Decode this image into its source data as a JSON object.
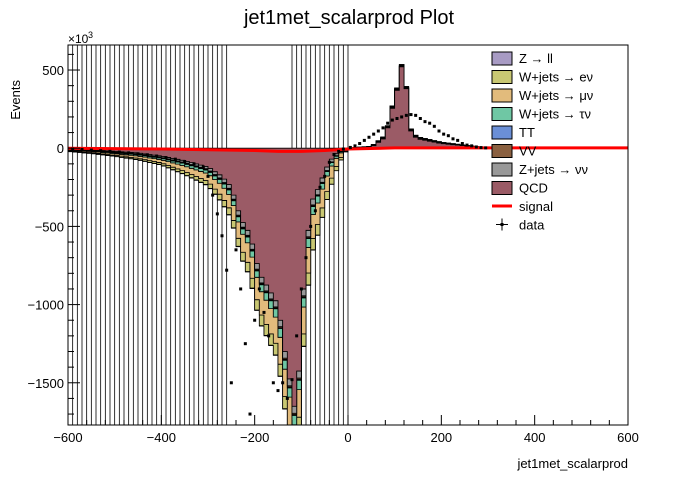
{
  "chart_data": {
    "type": "area",
    "title": "jet1met_scalarprod Plot",
    "xlabel": "jet1met_scalarprod",
    "ylabel": "Events",
    "y_multiplier_label": "×10³",
    "y_multiplier_base": "×10",
    "y_multiplier_exp": "3",
    "xlim": [
      -600,
      600
    ],
    "ylim": [
      -1770,
      660
    ],
    "x_ticks": [
      -600,
      -400,
      -200,
      0,
      200,
      400,
      600
    ],
    "x_tick_labels": [
      "−600",
      "−400",
      "−200",
      "0",
      "200",
      "400",
      "600"
    ],
    "y_ticks": [
      500,
      0,
      -500,
      -1000,
      -1500
    ],
    "y_tick_labels": [
      "500",
      "0",
      "−500",
      "−1000",
      "−1500"
    ],
    "bin_width": 10,
    "stack_x_range": [
      -600,
      300
    ],
    "hatched_x_ranges": [
      [
        -600,
        -260
      ],
      [
        -120,
        0
      ]
    ],
    "legend_position": "top-right",
    "legend": [
      {
        "label": "Z → ll",
        "type": "box",
        "color": "#a89bc4"
      },
      {
        "label": "W+jets → eν",
        "type": "box",
        "color": "#c9c873"
      },
      {
        "label": "W+jets → μν",
        "type": "box",
        "color": "#e2bb7c"
      },
      {
        "label": "W+jets → τν",
        "type": "box",
        "color": "#6fc7a4"
      },
      {
        "label": "TT",
        "type": "box",
        "color": "#6b8fd6"
      },
      {
        "label": "VV",
        "type": "box",
        "color": "#8a6040"
      },
      {
        "label": "Z+jets → νν",
        "type": "box",
        "color": "#999999"
      },
      {
        "label": "QCD",
        "type": "box",
        "color": "#9b5b66"
      },
      {
        "label": "signal",
        "type": "line",
        "color": "#ff0000"
      },
      {
        "label": "data",
        "type": "marker",
        "color": "#000000"
      }
    ],
    "series": [
      {
        "name": "QCD",
        "color": "#9b5b66",
        "x": [
          -600,
          -550,
          -500,
          -450,
          -400,
          -350,
          -300,
          -270,
          -250,
          -230,
          -210,
          -190,
          -170,
          -150,
          -130,
          -120,
          -110,
          -100,
          -90,
          -80,
          -70,
          -60,
          -50,
          -40,
          -30,
          -20,
          -10,
          0,
          50,
          80,
          90,
          100,
          110,
          120,
          130,
          140,
          150,
          200,
          250,
          300
        ],
        "y": [
          -5,
          -10,
          -20,
          -30,
          -50,
          -80,
          -120,
          -180,
          -250,
          -450,
          -550,
          -800,
          -900,
          -1000,
          -1400,
          -1550,
          -1750,
          -1100,
          -700,
          -350,
          -300,
          -230,
          -150,
          -90,
          -50,
          -20,
          -5,
          0,
          5,
          70,
          190,
          320,
          420,
          620,
          140,
          80,
          60,
          30,
          15,
          0
        ]
      },
      {
        "name": "Z+jets → νν",
        "color": "#999999",
        "x": [
          -600,
          -500,
          -400,
          -300,
          -250,
          -200,
          -150,
          -120,
          -100,
          -80,
          -60,
          -40,
          -20,
          0,
          100,
          200,
          300
        ],
        "y": [
          -2,
          -5,
          -8,
          -15,
          -25,
          -35,
          -40,
          -45,
          -45,
          -40,
          -30,
          -20,
          -10,
          0,
          5,
          3,
          0
        ]
      },
      {
        "name": "VV",
        "color": "#8a6040",
        "x": [
          -600,
          -400,
          -200,
          -100,
          0,
          300
        ],
        "y": [
          -1,
          -3,
          -6,
          -8,
          0,
          0
        ]
      },
      {
        "name": "TT",
        "color": "#6b8fd6",
        "x": [
          -600,
          -400,
          -200,
          -100,
          0,
          300
        ],
        "y": [
          -1,
          -3,
          -5,
          -6,
          0,
          0
        ]
      },
      {
        "name": "W+jets → τν",
        "color": "#6fc7a4",
        "x": [
          -600,
          -500,
          -400,
          -300,
          -250,
          -200,
          -150,
          -120,
          -100,
          -80,
          -60,
          -40,
          -20,
          0,
          100,
          300
        ],
        "y": [
          -3,
          -6,
          -10,
          -20,
          -30,
          -40,
          -55,
          -60,
          -60,
          -55,
          -40,
          -25,
          -10,
          0,
          3,
          0
        ]
      },
      {
        "name": "W+jets → μν",
        "color": "#e2bb7c",
        "x": [
          -600,
          -500,
          -400,
          -300,
          -250,
          -200,
          -150,
          -120,
          -100,
          -80,
          -60,
          -40,
          -20,
          0,
          100,
          300
        ],
        "y": [
          -5,
          -10,
          -20,
          -50,
          -90,
          -140,
          -170,
          -180,
          -175,
          -160,
          -130,
          -90,
          -40,
          0,
          5,
          0
        ]
      },
      {
        "name": "W+jets → eν",
        "color": "#c9c873",
        "x": [
          -600,
          -500,
          -400,
          -300,
          -250,
          -200,
          -150,
          -120,
          -100,
          -80,
          -60,
          -40,
          -20,
          0,
          100,
          300
        ],
        "y": [
          -3,
          -6,
          -12,
          -25,
          -45,
          -65,
          -75,
          -80,
          -80,
          -75,
          -65,
          -45,
          -20,
          0,
          3,
          0
        ]
      },
      {
        "name": "Z → ll",
        "color": "#a89bc4",
        "x": [
          -600,
          -400,
          -255,
          -250,
          -245,
          -200,
          -100,
          0,
          300
        ],
        "y": [
          -1,
          -2,
          -3,
          -70,
          -3,
          -3,
          -3,
          0,
          0
        ]
      }
    ],
    "signal": {
      "name": "signal",
      "color": "#ff0000",
      "x": [
        -600,
        -400,
        -300,
        -200,
        -150,
        -100,
        -50,
        0,
        100,
        200,
        300,
        400,
        500,
        600
      ],
      "y": [
        0,
        -5,
        -10,
        -15,
        -20,
        -20,
        -15,
        -5,
        2,
        2,
        2,
        2,
        2,
        2
      ]
    },
    "data_points": {
      "name": "data",
      "color": "#000000",
      "x": [
        -590,
        -570,
        -550,
        -530,
        -510,
        -490,
        -470,
        -450,
        -430,
        -410,
        -390,
        -370,
        -350,
        -330,
        -310,
        -300,
        -290,
        -280,
        -270,
        -260,
        -250,
        -240,
        -230,
        -220,
        -210,
        -200,
        -190,
        -180,
        -170,
        -160,
        -150,
        -140,
        -130,
        -120,
        -110,
        -100,
        -90,
        -80,
        -70,
        -60,
        -50,
        -40,
        -30,
        -20,
        -10,
        5,
        15,
        25,
        35,
        45,
        55,
        65,
        75,
        85,
        95,
        105,
        115,
        125,
        135,
        145,
        155,
        165,
        175,
        185,
        195,
        205,
        215,
        225,
        235,
        245,
        255,
        265,
        275,
        285,
        295
      ],
      "y": [
        -5,
        -8,
        -12,
        -16,
        -20,
        -25,
        -30,
        -36,
        -42,
        -50,
        -60,
        -70,
        -85,
        -100,
        -120,
        -180,
        -300,
        -420,
        -560,
        -780,
        -1500,
        -650,
        -900,
        -1250,
        -1700,
        -1100,
        -900,
        -1050,
        -1200,
        -1500,
        -1550,
        -1500,
        -1600,
        -1480,
        -1200,
        -900,
        -700,
        -500,
        -400,
        -250,
        -180,
        -90,
        -40,
        -20,
        -5,
        5,
        15,
        30,
        50,
        70,
        90,
        110,
        130,
        160,
        180,
        190,
        200,
        210,
        215,
        210,
        190,
        170,
        160,
        140,
        110,
        90,
        80,
        60,
        50,
        30,
        20,
        15,
        8,
        4,
        2
      ]
    }
  }
}
